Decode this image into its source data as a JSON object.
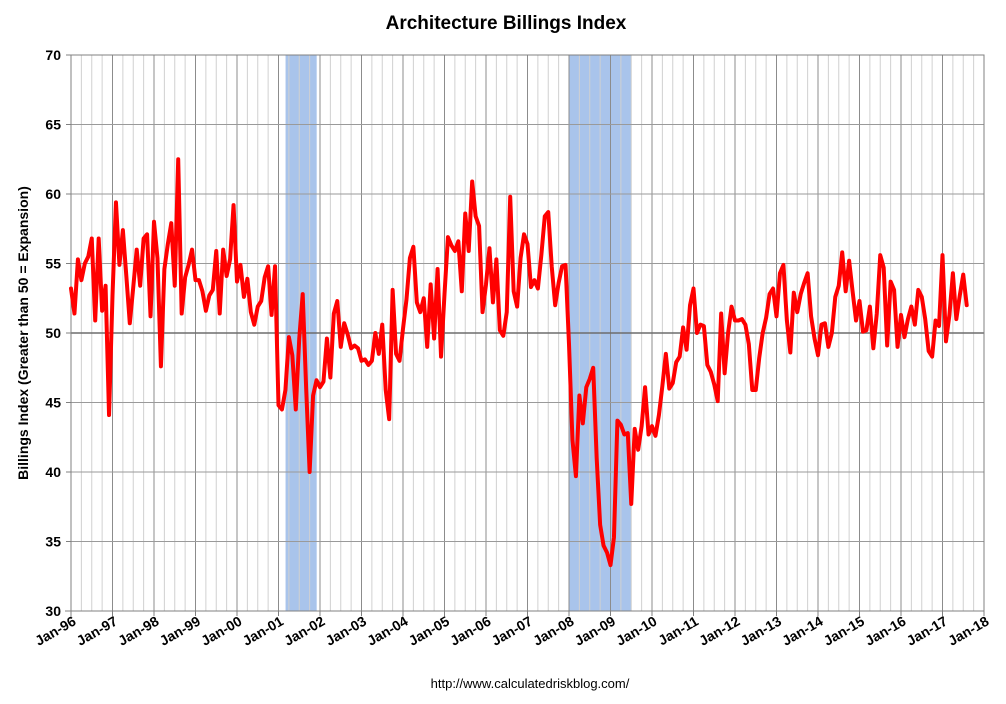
{
  "chart_data": {
    "type": "line",
    "title": "Architecture Billings Index",
    "xlabel": "",
    "ylabel": "Billings Index (Greater than 50 = Expansion)",
    "source": "http://www.calculatedriskblog.com/",
    "x_start": "Jan-96",
    "x_range": [
      1996.0,
      2018.0
    ],
    "ylim": [
      30,
      70
    ],
    "yticks": [
      30,
      35,
      40,
      45,
      50,
      55,
      60,
      65,
      70
    ],
    "xticks": [
      {
        "label": "Jan-96",
        "x": 1996
      },
      {
        "label": "Jan-97",
        "x": 1997
      },
      {
        "label": "Jan-98",
        "x": 1998
      },
      {
        "label": "Jan-99",
        "x": 1999
      },
      {
        "label": "Jan-00",
        "x": 2000
      },
      {
        "label": "Jan-01",
        "x": 2001
      },
      {
        "label": "Jan-02",
        "x": 2002
      },
      {
        "label": "Jan-03",
        "x": 2003
      },
      {
        "label": "Jan-04",
        "x": 2004
      },
      {
        "label": "Jan-05",
        "x": 2005
      },
      {
        "label": "Jan-06",
        "x": 2006
      },
      {
        "label": "Jan-07",
        "x": 2007
      },
      {
        "label": "Jan-08",
        "x": 2008
      },
      {
        "label": "Jan-09",
        "x": 2009
      },
      {
        "label": "Jan-10",
        "x": 2010
      },
      {
        "label": "Jan-11",
        "x": 2011
      },
      {
        "label": "Jan-12",
        "x": 2012
      },
      {
        "label": "Jan-13",
        "x": 2013
      },
      {
        "label": "Jan-14",
        "x": 2014
      },
      {
        "label": "Jan-15",
        "x": 2015
      },
      {
        "label": "Jan-16",
        "x": 2016
      },
      {
        "label": "Jan-17",
        "x": 2017
      },
      {
        "label": "Jan-18",
        "x": 2018
      }
    ],
    "reference_line": 50,
    "recessions": [
      {
        "start": 2001.17,
        "end": 2001.92
      },
      {
        "start": 2008.0,
        "end": 2009.5
      }
    ],
    "series": [
      {
        "name": "Architecture Billings Index",
        "color": "#ff0000",
        "values": [
          53.2,
          51.4,
          55.3,
          53.8,
          55.0,
          55.5,
          56.8,
          50.9,
          56.8,
          51.6,
          53.4,
          44.1,
          52.7,
          59.4,
          54.9,
          57.4,
          54.1,
          50.7,
          53.3,
          56.0,
          53.4,
          56.8,
          57.1,
          51.2,
          58.0,
          55.4,
          47.6,
          54.6,
          56.4,
          57.9,
          53.4,
          62.5,
          51.4,
          54.0,
          54.9,
          56.0,
          53.8,
          53.8,
          53.0,
          51.6,
          52.7,
          53.1,
          55.9,
          51.4,
          56.0,
          54.1,
          55.3,
          59.2,
          53.7,
          54.9,
          52.6,
          53.9,
          51.5,
          50.6,
          51.9,
          52.3,
          54.0,
          54.8,
          51.3,
          54.8,
          44.8,
          44.5,
          45.9,
          49.7,
          48.4,
          44.5,
          49.6,
          52.8,
          46.0,
          40.0,
          45.5,
          46.6,
          46.1,
          46.5,
          49.6,
          46.8,
          51.4,
          52.3,
          49.0,
          50.7,
          49.9,
          48.9,
          49.1,
          48.9,
          48.0,
          48.1,
          47.7,
          48.0,
          50.0,
          48.5,
          50.6,
          45.9,
          43.8,
          53.1,
          48.5,
          48.0,
          50.3,
          52.4,
          55.4,
          56.2,
          52.2,
          51.5,
          52.5,
          49.0,
          53.5,
          49.6,
          54.6,
          48.3,
          52.8,
          56.9,
          56.3,
          55.9,
          56.6,
          53.0,
          58.6,
          55.9,
          60.9,
          58.4,
          57.7,
          51.5,
          53.5,
          56.1,
          52.2,
          55.3,
          50.2,
          49.8,
          51.5,
          59.8,
          53.0,
          51.9,
          55.4,
          57.1,
          56.4,
          53.3,
          53.8,
          53.2,
          55.6,
          58.4,
          58.7,
          54.8,
          52.0,
          53.6,
          54.8,
          54.9,
          49.2,
          42.3,
          39.7,
          45.5,
          43.5,
          46.1,
          46.7,
          47.5,
          41.0,
          36.2,
          34.7,
          34.2,
          33.3,
          35.3,
          43.7,
          43.4,
          42.7,
          42.8,
          37.7,
          43.1,
          41.6,
          43.3,
          46.1,
          42.7,
          43.3,
          42.6,
          44.1,
          46.2,
          48.5,
          46.0,
          46.4,
          47.9,
          48.3,
          50.4,
          48.8,
          52.0,
          53.2,
          50.0,
          50.6,
          50.5,
          47.7,
          47.2,
          46.3,
          45.1,
          51.4,
          47.1,
          50.0,
          51.9,
          50.9,
          50.9,
          51.0,
          50.6,
          49.2,
          45.9,
          45.9,
          48.2,
          50.0,
          51.1,
          52.8,
          53.2,
          51.2,
          54.3,
          54.9,
          50.9,
          48.6,
          52.9,
          51.5,
          52.8,
          53.6,
          54.3,
          51.2,
          49.6,
          48.4,
          50.6,
          50.7,
          49.0,
          50.0,
          52.6,
          53.4,
          55.8,
          53.0,
          55.2,
          53.0,
          50.9,
          52.3,
          50.1,
          50.2,
          51.9,
          48.9,
          51.4,
          55.6,
          54.7,
          49.1,
          53.7,
          53.1,
          49.0,
          51.3,
          49.7,
          51.0,
          51.9,
          50.6,
          53.1,
          52.6,
          51.0,
          48.7,
          48.3,
          50.9,
          50.5,
          55.6,
          49.4,
          51.3,
          54.3,
          51.0,
          52.7,
          54.2,
          52.0
        ]
      }
    ]
  }
}
